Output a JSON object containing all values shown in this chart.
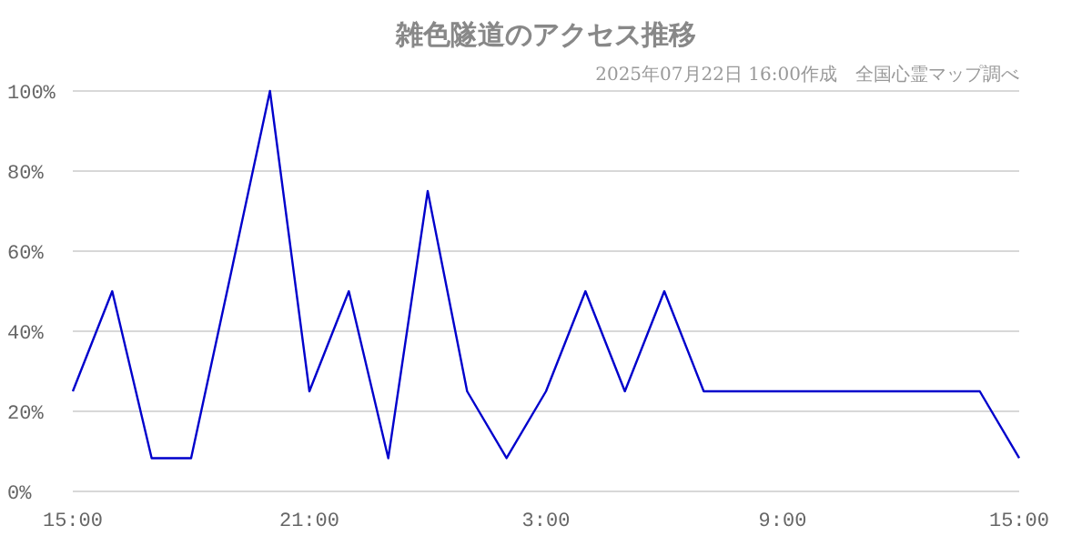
{
  "chart_data": {
    "type": "line",
    "title": "雑色隧道のアクセス推移",
    "subtitle": "2025年07月22日 16:00作成　全国心霊マップ調べ",
    "x": [
      "2025-07-21T15:00",
      "2025-07-21T16:00",
      "2025-07-21T17:00",
      "2025-07-21T18:00",
      "2025-07-21T19:00",
      "2025-07-21T20:00",
      "2025-07-21T21:00",
      "2025-07-21T22:00",
      "2025-07-21T23:00",
      "2025-07-22T00:00",
      "2025-07-22T01:00",
      "2025-07-22T02:00",
      "2025-07-22T03:00",
      "2025-07-22T04:00",
      "2025-07-22T05:00",
      "2025-07-22T06:00",
      "2025-07-22T07:00",
      "2025-07-22T08:00",
      "2025-07-22T09:00",
      "2025-07-22T10:00",
      "2025-07-22T11:00",
      "2025-07-22T12:00",
      "2025-07-22T13:00",
      "2025-07-22T14:00",
      "2025-07-22T15:00"
    ],
    "series": [
      {
        "color": "#0000cc",
        "values": [
          25,
          50,
          8.3,
          8.3,
          54,
          100,
          25,
          50,
          8.3,
          75,
          25,
          8.3,
          25,
          50,
          25,
          50,
          25,
          25,
          25,
          25,
          25,
          25,
          25,
          25,
          8.3
        ]
      }
    ],
    "xlim": [
      "2025-07-21T15:00",
      "2025-07-22T15:00"
    ],
    "xticks": [
      {
        "value": "2025-07-21T15:00",
        "label": "15:00"
      },
      {
        "value": "2025-07-21T21:00",
        "label": "21:00"
      },
      {
        "value": "2025-07-22T03:00",
        "label": "3:00"
      },
      {
        "value": "2025-07-22T09:00",
        "label": "9:00"
      },
      {
        "value": "2025-07-22T15:00",
        "label": "15:00"
      }
    ],
    "ylim": [
      0,
      100
    ],
    "yticks": [
      {
        "value": 0,
        "label": "0%"
      },
      {
        "value": 20,
        "label": "20%"
      },
      {
        "value": 40,
        "label": "40%"
      },
      {
        "value": 60,
        "label": "60%"
      },
      {
        "value": 80,
        "label": "80%"
      },
      {
        "value": 100,
        "label": "100%"
      }
    ],
    "grid": "y"
  }
}
